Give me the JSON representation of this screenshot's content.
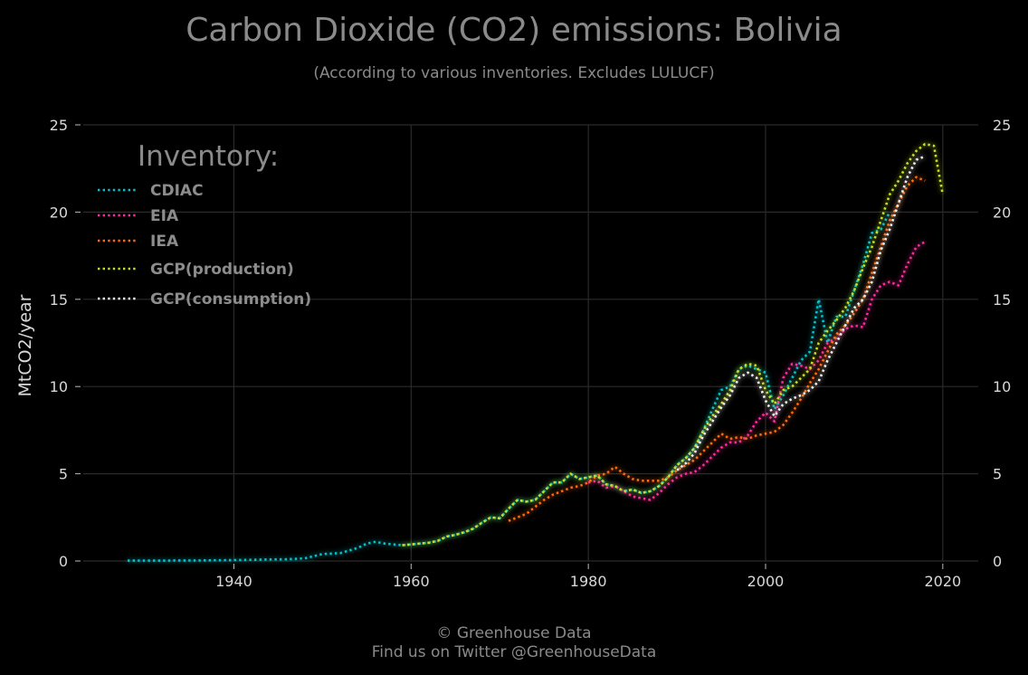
{
  "chart_data": {
    "type": "line",
    "title": "Carbon Dioxide (CO2) emissions: Bolivia",
    "subtitle": "(According to various inventories. Excludes LULUCF)",
    "ylabel": "MtCO2/year",
    "xlabel": "",
    "xlim": [
      1923,
      2024
    ],
    "ylim": [
      0,
      25
    ],
    "xticks": [
      1940,
      1960,
      1980,
      2000,
      2020
    ],
    "yticks": [
      0,
      5,
      10,
      15,
      20,
      25
    ],
    "grid": true,
    "legend_title": "Inventory:",
    "legend_position": "top-left",
    "series": [
      {
        "name": "CDIAC",
        "color": "#00c5cd",
        "x": [
          1928,
          1930,
          1932,
          1934,
          1936,
          1938,
          1940,
          1942,
          1944,
          1946,
          1948,
          1950,
          1952,
          1954,
          1955,
          1956,
          1957,
          1958,
          1959,
          1960,
          1961,
          1962,
          1963,
          1964,
          1965,
          1966,
          1967,
          1968,
          1969,
          1970,
          1971,
          1972,
          1973,
          1974,
          1975,
          1976,
          1977,
          1978,
          1979,
          1980,
          1981,
          1982,
          1983,
          1984,
          1985,
          1986,
          1987,
          1988,
          1989,
          1990,
          1991,
          1992,
          1993,
          1994,
          1995,
          1996,
          1997,
          1998,
          1999,
          2000,
          2001,
          2002,
          2003,
          2004,
          2005,
          2006,
          2007,
          2008,
          2009,
          2010,
          2011,
          2012,
          2013,
          2014
        ],
        "values": [
          0.02,
          0.02,
          0.02,
          0.03,
          0.03,
          0.04,
          0.05,
          0.07,
          0.09,
          0.1,
          0.15,
          0.4,
          0.45,
          0.75,
          1.0,
          1.1,
          1.0,
          0.95,
          0.9,
          0.95,
          1.0,
          1.05,
          1.15,
          1.4,
          1.5,
          1.65,
          1.85,
          2.2,
          2.5,
          2.45,
          3.0,
          3.5,
          3.4,
          3.5,
          4.0,
          4.5,
          4.5,
          5.0,
          4.7,
          4.8,
          4.9,
          4.4,
          4.3,
          4.0,
          4.1,
          3.9,
          4.0,
          4.3,
          4.8,
          5.5,
          5.9,
          6.5,
          7.5,
          8.7,
          9.8,
          10.0,
          11.0,
          11.2,
          11.0,
          10.8,
          8.7,
          9.5,
          10.5,
          11.5,
          12.0,
          15.0,
          12.5,
          14.0,
          14.0,
          15.5,
          17.0,
          18.8,
          19.0,
          20.0
        ]
      },
      {
        "name": "EIA",
        "color": "#ff2a9d",
        "x": [
          1980,
          1981,
          1982,
          1983,
          1984,
          1985,
          1986,
          1987,
          1988,
          1989,
          1990,
          1991,
          1992,
          1993,
          1994,
          1995,
          1996,
          1997,
          1998,
          1999,
          2000,
          2001,
          2002,
          2003,
          2004,
          2005,
          2006,
          2007,
          2008,
          2009,
          2010,
          2011,
          2012,
          2013,
          2014,
          2015,
          2016,
          2017,
          2018
        ],
        "values": [
          4.5,
          4.6,
          4.2,
          4.3,
          4.0,
          3.7,
          3.6,
          3.5,
          3.9,
          4.4,
          4.8,
          5.0,
          5.1,
          5.5,
          6.0,
          6.5,
          6.8,
          6.8,
          7.2,
          8.0,
          8.5,
          8.0,
          10.5,
          11.3,
          11.2,
          11.0,
          11.5,
          12.5,
          12.8,
          13.3,
          13.5,
          13.4,
          15.0,
          15.8,
          16.0,
          15.8,
          17.0,
          18.0,
          18.3
        ]
      },
      {
        "name": "IEA",
        "color": "#ff6a10",
        "x": [
          1971,
          1972,
          1973,
          1974,
          1975,
          1976,
          1977,
          1978,
          1979,
          1980,
          1981,
          1982,
          1983,
          1984,
          1985,
          1986,
          1987,
          1988,
          1989,
          1990,
          1991,
          1992,
          1993,
          1994,
          1995,
          1996,
          1997,
          1998,
          1999,
          2000,
          2001,
          2002,
          2003,
          2004,
          2005,
          2006,
          2007,
          2008,
          2009,
          2010,
          2011,
          2012,
          2013,
          2014,
          2015,
          2016,
          2017,
          2018
        ],
        "values": [
          2.3,
          2.5,
          2.7,
          3.1,
          3.5,
          3.8,
          4.0,
          4.2,
          4.3,
          4.5,
          4.9,
          5.0,
          5.4,
          5.0,
          4.7,
          4.6,
          4.6,
          4.6,
          4.8,
          5.2,
          5.5,
          5.8,
          6.3,
          6.8,
          7.3,
          7.0,
          7.1,
          7.0,
          7.2,
          7.3,
          7.4,
          7.8,
          8.5,
          9.3,
          10.2,
          11.0,
          12.0,
          13.0,
          13.5,
          14.2,
          15.0,
          16.5,
          18.0,
          19.5,
          20.5,
          21.5,
          22.0,
          21.8
        ]
      },
      {
        "name": "GCP(production)",
        "color": "#c8e020",
        "x": [
          1959,
          1960,
          1961,
          1962,
          1963,
          1964,
          1965,
          1966,
          1967,
          1968,
          1969,
          1970,
          1971,
          1972,
          1973,
          1974,
          1975,
          1976,
          1977,
          1978,
          1979,
          1980,
          1981,
          1982,
          1983,
          1984,
          1985,
          1986,
          1987,
          1988,
          1989,
          1990,
          1991,
          1992,
          1993,
          1994,
          1995,
          1996,
          1997,
          1998,
          1999,
          2000,
          2001,
          2002,
          2003,
          2004,
          2005,
          2006,
          2007,
          2008,
          2009,
          2010,
          2011,
          2012,
          2013,
          2014,
          2015,
          2016,
          2017,
          2018,
          2019,
          2020
        ],
        "values": [
          0.9,
          0.95,
          1.0,
          1.05,
          1.15,
          1.4,
          1.5,
          1.65,
          1.85,
          2.2,
          2.5,
          2.45,
          3.0,
          3.5,
          3.4,
          3.5,
          4.0,
          4.5,
          4.5,
          5.0,
          4.7,
          4.8,
          4.9,
          4.4,
          4.3,
          4.0,
          4.1,
          3.9,
          4.0,
          4.3,
          4.8,
          5.5,
          5.9,
          6.5,
          7.5,
          8.3,
          9.0,
          9.8,
          11.0,
          11.3,
          11.2,
          9.8,
          9.0,
          9.8,
          10.0,
          10.5,
          11.0,
          12.5,
          13.2,
          13.8,
          14.5,
          15.5,
          16.8,
          18.0,
          19.5,
          21.0,
          21.8,
          22.8,
          23.5,
          23.9,
          23.8,
          21.0
        ]
      },
      {
        "name": "GCP(consumption)",
        "color": "#f0f0f0",
        "x": [
          1990,
          1991,
          1992,
          1993,
          1994,
          1995,
          1996,
          1997,
          1998,
          1999,
          2000,
          2001,
          2002,
          2003,
          2004,
          2005,
          2006,
          2007,
          2008,
          2009,
          2010,
          2011,
          2012,
          2013,
          2014,
          2015,
          2016,
          2017,
          2018
        ],
        "values": [
          5.2,
          5.6,
          6.2,
          7.2,
          8.0,
          8.8,
          9.5,
          10.5,
          10.8,
          10.5,
          9.2,
          8.3,
          9.0,
          9.3,
          9.5,
          9.8,
          10.3,
          11.5,
          12.5,
          13.5,
          14.5,
          15.0,
          16.0,
          17.8,
          19.0,
          20.5,
          22.0,
          23.0,
          23.2
        ]
      }
    ],
    "footer": [
      "© Greenhouse Data",
      "Find us on Twitter @GreenhouseData"
    ]
  }
}
